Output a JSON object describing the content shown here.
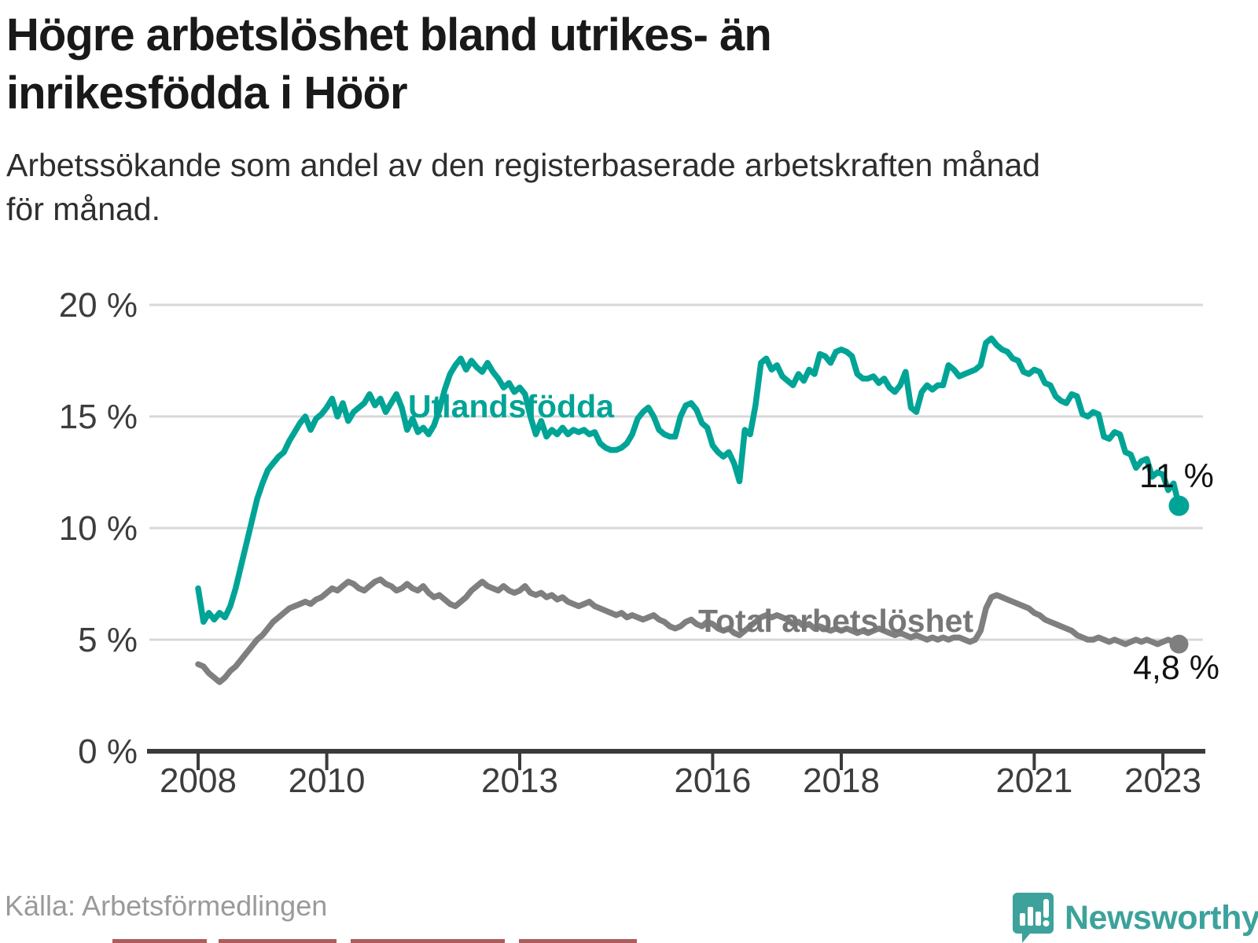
{
  "title": "Högre arbetslöshet bland utrikes- än\ninrikesfödda i Höör",
  "subtitle": "Arbetssökande som andel av den registerbaserade arbetskraften månad\nför månad.",
  "source": "Källa: Arbetsförmedlingen",
  "logo": {
    "text": "Newsworthy",
    "color": "#3ca29b"
  },
  "colors": {
    "foreign_born": "#00a496",
    "total": "#7f7f7f",
    "gridline": "#d8d8d8",
    "axis": "#3b3b3b",
    "tick_label": "#3d3d3d",
    "value_label": "#111111"
  },
  "chart_data": {
    "type": "line",
    "title": "",
    "xlabel": "",
    "ylabel": "",
    "ylim": [
      0,
      20
    ],
    "grid": true,
    "legend": "inline-labels",
    "x_start": "2008-01",
    "x_end": "2023-04",
    "x_unit": "month",
    "yticks": [
      {
        "v": 0,
        "label": "0 %"
      },
      {
        "v": 5,
        "label": "5 %"
      },
      {
        "v": 10,
        "label": "10 %"
      },
      {
        "v": 15,
        "label": "15 %"
      },
      {
        "v": 20,
        "label": "20 %"
      }
    ],
    "xticks": [
      {
        "year": 2008,
        "label": "2008"
      },
      {
        "year": 2010,
        "label": "2010"
      },
      {
        "year": 2013,
        "label": "2013"
      },
      {
        "year": 2016,
        "label": "2016"
      },
      {
        "year": 2018,
        "label": "2018"
      },
      {
        "year": 2021,
        "label": "2021"
      },
      {
        "year": 2023,
        "label": "2023"
      }
    ],
    "series": [
      {
        "name": "Utlandsfödda",
        "color": "#00a496",
        "end_label": "11 %",
        "end_value": 11.0,
        "values": [
          7.3,
          5.8,
          6.2,
          5.9,
          6.2,
          6.0,
          6.5,
          7.3,
          8.3,
          9.3,
          10.3,
          11.3,
          12.0,
          12.6,
          12.9,
          13.2,
          13.4,
          13.9,
          14.3,
          14.7,
          15.0,
          14.4,
          14.9,
          15.1,
          15.4,
          15.8,
          15.0,
          15.6,
          14.8,
          15.2,
          15.4,
          15.6,
          16.0,
          15.5,
          15.8,
          15.2,
          15.6,
          16.0,
          15.4,
          14.4,
          14.9,
          14.3,
          14.5,
          14.2,
          14.6,
          15.3,
          16.2,
          16.9,
          17.3,
          17.6,
          17.1,
          17.5,
          17.2,
          17.0,
          17.4,
          17.0,
          16.7,
          16.3,
          16.5,
          16.1,
          16.3,
          16.0,
          15.0,
          14.2,
          14.8,
          14.1,
          14.4,
          14.2,
          14.5,
          14.2,
          14.4,
          14.3,
          14.4,
          14.2,
          14.3,
          13.8,
          13.6,
          13.5,
          13.5,
          13.6,
          13.8,
          14.2,
          14.9,
          15.2,
          15.4,
          15.0,
          14.4,
          14.2,
          14.1,
          14.1,
          15.0,
          15.5,
          15.6,
          15.3,
          14.7,
          14.5,
          13.7,
          13.4,
          13.2,
          13.4,
          12.9,
          12.1,
          14.4,
          14.2,
          15.5,
          17.4,
          17.6,
          17.1,
          17.3,
          16.8,
          16.6,
          16.4,
          16.9,
          16.6,
          17.1,
          16.9,
          17.8,
          17.7,
          17.4,
          17.9,
          18.0,
          17.9,
          17.7,
          16.9,
          16.7,
          16.7,
          16.8,
          16.5,
          16.7,
          16.3,
          16.1,
          16.4,
          17.0,
          15.4,
          15.2,
          16.1,
          16.4,
          16.2,
          16.4,
          16.4,
          17.3,
          17.1,
          16.8,
          16.9,
          17.0,
          17.1,
          17.3,
          18.3,
          18.5,
          18.2,
          18.0,
          17.9,
          17.6,
          17.5,
          17.0,
          16.9,
          17.1,
          17.0,
          16.5,
          16.4,
          15.9,
          15.7,
          15.6,
          16.0,
          15.9,
          15.1,
          15.0,
          15.2,
          15.1,
          14.1,
          14.0,
          14.3,
          14.2,
          13.4,
          13.3,
          12.7,
          13.0,
          13.1,
          12.3,
          12.5,
          12.4,
          11.7,
          12.0,
          11.0
        ]
      },
      {
        "name": "Total arbetslöshet",
        "color": "#7f7f7f",
        "end_label": "4,8 %",
        "end_value": 4.8,
        "values": [
          3.9,
          3.8,
          3.5,
          3.3,
          3.1,
          3.3,
          3.6,
          3.8,
          4.1,
          4.4,
          4.7,
          5.0,
          5.2,
          5.5,
          5.8,
          6.0,
          6.2,
          6.4,
          6.5,
          6.6,
          6.7,
          6.6,
          6.8,
          6.9,
          7.1,
          7.3,
          7.2,
          7.4,
          7.6,
          7.5,
          7.3,
          7.2,
          7.4,
          7.6,
          7.7,
          7.5,
          7.4,
          7.2,
          7.3,
          7.5,
          7.3,
          7.2,
          7.4,
          7.1,
          6.9,
          7.0,
          6.8,
          6.6,
          6.5,
          6.7,
          6.9,
          7.2,
          7.4,
          7.6,
          7.4,
          7.3,
          7.2,
          7.4,
          7.2,
          7.1,
          7.2,
          7.4,
          7.1,
          7.0,
          7.1,
          6.9,
          7.0,
          6.8,
          6.9,
          6.7,
          6.6,
          6.5,
          6.6,
          6.7,
          6.5,
          6.4,
          6.3,
          6.2,
          6.1,
          6.2,
          6.0,
          6.1,
          6.0,
          5.9,
          6.0,
          6.1,
          5.9,
          5.8,
          5.6,
          5.5,
          5.6,
          5.8,
          5.9,
          5.7,
          5.6,
          5.8,
          5.7,
          5.5,
          5.4,
          5.5,
          5.3,
          5.2,
          5.4,
          5.6,
          5.8,
          6.0,
          6.1,
          6.0,
          6.1,
          6.0,
          5.9,
          5.7,
          5.8,
          5.6,
          5.7,
          5.5,
          5.6,
          5.5,
          5.4,
          5.5,
          5.4,
          5.5,
          5.4,
          5.3,
          5.4,
          5.3,
          5.4,
          5.5,
          5.4,
          5.3,
          5.2,
          5.3,
          5.2,
          5.1,
          5.2,
          5.1,
          5.0,
          5.1,
          5.0,
          5.1,
          5.0,
          5.1,
          5.1,
          5.0,
          4.9,
          5.0,
          5.4,
          6.4,
          6.9,
          7.0,
          6.9,
          6.8,
          6.7,
          6.6,
          6.5,
          6.4,
          6.2,
          6.1,
          5.9,
          5.8,
          5.7,
          5.6,
          5.5,
          5.4,
          5.2,
          5.1,
          5.0,
          5.0,
          5.1,
          5.0,
          4.9,
          5.0,
          4.9,
          4.8,
          4.9,
          5.0,
          4.9,
          5.0,
          4.9,
          4.8,
          4.9,
          5.0,
          4.9,
          4.8
        ]
      }
    ]
  }
}
